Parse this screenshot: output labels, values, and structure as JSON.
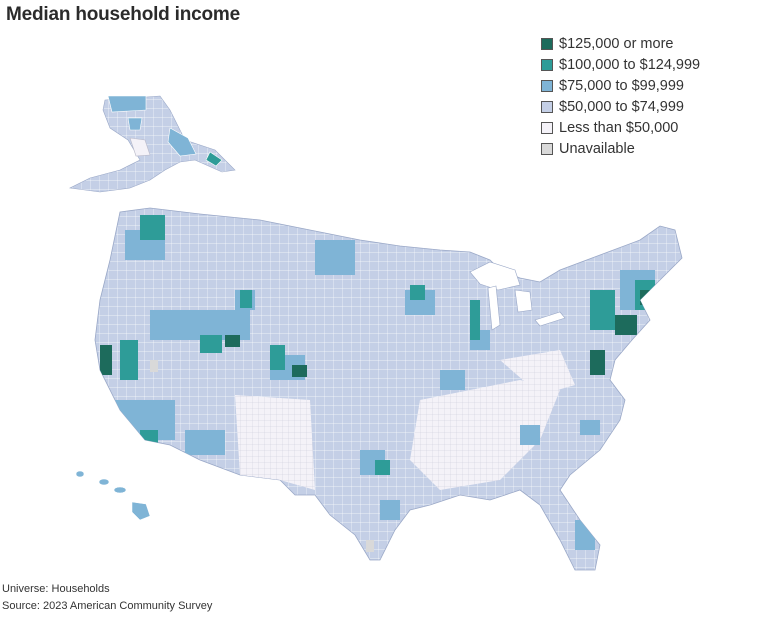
{
  "title": "Median household income",
  "legend": [
    {
      "label": "$125,000 or more",
      "color": "#1d6b5c"
    },
    {
      "label": "$100,000 to $124,999",
      "color": "#2e9c98"
    },
    {
      "label": "$75,000 to $99,999",
      "color": "#7fb4d6"
    },
    {
      "label": "$50,000 to $74,999",
      "color": "#c4cfe6"
    },
    {
      "label": "Less than $50,000",
      "color": "#f4f2f8"
    },
    {
      "label": "Unavailable",
      "color": "#d9d9d9"
    }
  ],
  "footer": {
    "universe": "Universe: Households",
    "source": "Source: 2023 American Community Survey"
  },
  "map_data": {
    "region": "United States counties",
    "base_category": "$50,000 to $74,999",
    "highlight_regions": [
      {
        "area": "San Francisco Bay Area, CA",
        "category": "$125,000 or more"
      },
      {
        "area": "Northern Virginia / Washington DC",
        "category": "$125,000 or more"
      },
      {
        "area": "New York / New Jersey / Connecticut",
        "category": "$125,000 or more"
      },
      {
        "area": "Boston area, MA",
        "category": "$125,000 or more"
      },
      {
        "area": "Denver / Colorado Front Range",
        "category": "$125,000 or more"
      },
      {
        "area": "Seattle area, WA",
        "category": "$100,000 to $124,999"
      },
      {
        "area": "Southern California coast",
        "category": "$100,000 to $124,999"
      },
      {
        "area": "Minneapolis area, MN",
        "category": "$75,000 to $99,999"
      },
      {
        "area": "Utah (Salt Lake City)",
        "category": "$100,000 to $124,999"
      },
      {
        "area": "Mississippi Delta / Deep South",
        "category": "Less than $50,000"
      },
      {
        "area": "Appalachia",
        "category": "Less than $50,000"
      },
      {
        "area": "New Mexico / Arizona borderlands",
        "category": "Less than $50,000"
      }
    ]
  }
}
